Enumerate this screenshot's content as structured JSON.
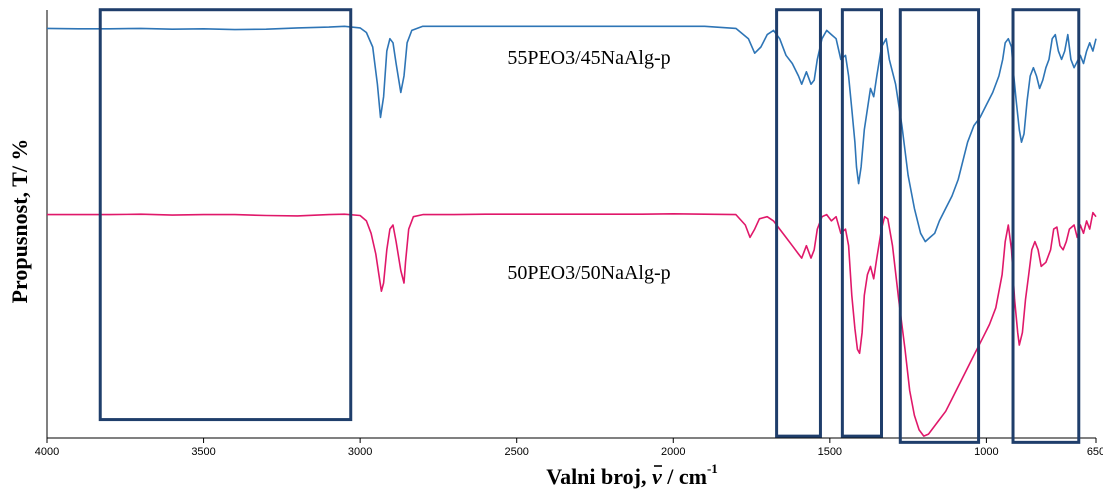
{
  "chart_data": {
    "type": "line",
    "xlabel": "Valni broj, ν̄ / cm-1",
    "xlabel_parts": {
      "text": "Valni broj, ",
      "symbol": "ν",
      "unit": " / cm",
      "sup": "-1"
    },
    "ylabel": "Propusnost, T/ %",
    "xlim": [
      4000,
      650
    ],
    "x_reversed": true,
    "xticks": [
      4000,
      3500,
      3000,
      2500,
      2000,
      1500,
      1000,
      650
    ],
    "y_ticks_shown": false,
    "grid": false,
    "series": [
      {
        "name": "55PEO3/45NaAlg-p",
        "color": "#2e75b6",
        "points": [
          [
            4000,
            97.5
          ],
          [
            3900,
            97.4
          ],
          [
            3800,
            97.4
          ],
          [
            3700,
            97.5
          ],
          [
            3600,
            97.3
          ],
          [
            3500,
            97.4
          ],
          [
            3400,
            97.2
          ],
          [
            3300,
            97.3
          ],
          [
            3200,
            97.6
          ],
          [
            3100,
            97.8
          ],
          [
            3050,
            98.0
          ],
          [
            3000,
            97.6
          ],
          [
            2980,
            96.5
          ],
          [
            2960,
            93
          ],
          [
            2945,
            84
          ],
          [
            2935,
            76
          ],
          [
            2925,
            81
          ],
          [
            2915,
            92
          ],
          [
            2905,
            95
          ],
          [
            2895,
            94
          ],
          [
            2885,
            89
          ],
          [
            2870,
            82
          ],
          [
            2860,
            86
          ],
          [
            2850,
            94
          ],
          [
            2835,
            97
          ],
          [
            2800,
            98
          ],
          [
            2700,
            98
          ],
          [
            2600,
            98
          ],
          [
            2500,
            98
          ],
          [
            2400,
            98
          ],
          [
            2300,
            98
          ],
          [
            2200,
            98
          ],
          [
            2100,
            98
          ],
          [
            2000,
            98
          ],
          [
            1900,
            98
          ],
          [
            1800,
            97.5
          ],
          [
            1760,
            95
          ],
          [
            1740,
            91.5
          ],
          [
            1720,
            93
          ],
          [
            1700,
            96
          ],
          [
            1680,
            97
          ],
          [
            1660,
            95
          ],
          [
            1640,
            91
          ],
          [
            1620,
            89
          ],
          [
            1600,
            86
          ],
          [
            1590,
            84
          ],
          [
            1575,
            87
          ],
          [
            1560,
            84
          ],
          [
            1550,
            85
          ],
          [
            1540,
            90
          ],
          [
            1525,
            95
          ],
          [
            1510,
            97
          ],
          [
            1495,
            96
          ],
          [
            1480,
            95
          ],
          [
            1465,
            90
          ],
          [
            1450,
            91
          ],
          [
            1440,
            86
          ],
          [
            1430,
            78
          ],
          [
            1420,
            70
          ],
          [
            1415,
            64
          ],
          [
            1408,
            60
          ],
          [
            1400,
            64
          ],
          [
            1390,
            73
          ],
          [
            1380,
            78
          ],
          [
            1370,
            83
          ],
          [
            1360,
            81
          ],
          [
            1350,
            86
          ],
          [
            1335,
            93
          ],
          [
            1320,
            95
          ],
          [
            1310,
            90
          ],
          [
            1290,
            84
          ],
          [
            1270,
            74
          ],
          [
            1250,
            62
          ],
          [
            1230,
            54
          ],
          [
            1210,
            48
          ],
          [
            1195,
            46
          ],
          [
            1180,
            47
          ],
          [
            1165,
            48
          ],
          [
            1150,
            51
          ],
          [
            1130,
            54
          ],
          [
            1110,
            57
          ],
          [
            1090,
            61
          ],
          [
            1060,
            70
          ],
          [
            1040,
            74
          ],
          [
            1020,
            76
          ],
          [
            1000,
            79
          ],
          [
            980,
            82
          ],
          [
            960,
            86
          ],
          [
            948,
            90
          ],
          [
            940,
            94
          ],
          [
            930,
            95
          ],
          [
            920,
            93
          ],
          [
            915,
            88
          ],
          [
            905,
            80
          ],
          [
            895,
            73
          ],
          [
            888,
            70
          ],
          [
            880,
            72
          ],
          [
            870,
            80
          ],
          [
            860,
            86
          ],
          [
            850,
            88
          ],
          [
            840,
            86
          ],
          [
            830,
            83
          ],
          [
            820,
            85
          ],
          [
            810,
            88
          ],
          [
            800,
            90
          ],
          [
            790,
            95
          ],
          [
            780,
            96
          ],
          [
            770,
            92
          ],
          [
            760,
            90
          ],
          [
            750,
            92
          ],
          [
            740,
            96
          ],
          [
            730,
            90
          ],
          [
            720,
            88
          ],
          [
            700,
            91
          ],
          [
            690,
            89
          ],
          [
            680,
            92
          ],
          [
            670,
            94
          ],
          [
            660,
            92
          ],
          [
            650,
            95
          ]
        ]
      },
      {
        "name": "50PEO3/50NaAlg-p",
        "color": "#e0186a",
        "points": [
          [
            4000,
            52.5
          ],
          [
            3900,
            52.5
          ],
          [
            3800,
            52.5
          ],
          [
            3700,
            52.6
          ],
          [
            3600,
            52.4
          ],
          [
            3500,
            52.5
          ],
          [
            3400,
            52.5
          ],
          [
            3300,
            52.3
          ],
          [
            3200,
            52.2
          ],
          [
            3100,
            52.5
          ],
          [
            3050,
            52.6
          ],
          [
            3000,
            52.3
          ],
          [
            2980,
            51
          ],
          [
            2965,
            48
          ],
          [
            2950,
            43
          ],
          [
            2940,
            38
          ],
          [
            2932,
            34
          ],
          [
            2925,
            36
          ],
          [
            2915,
            44
          ],
          [
            2905,
            49
          ],
          [
            2895,
            50
          ],
          [
            2885,
            46
          ],
          [
            2870,
            39
          ],
          [
            2860,
            36
          ],
          [
            2855,
            41
          ],
          [
            2845,
            49
          ],
          [
            2830,
            52
          ],
          [
            2800,
            52.5
          ],
          [
            2700,
            52.5
          ],
          [
            2600,
            52.6
          ],
          [
            2500,
            52.6
          ],
          [
            2400,
            52.6
          ],
          [
            2300,
            52.6
          ],
          [
            2200,
            52.6
          ],
          [
            2100,
            52.6
          ],
          [
            2000,
            52.7
          ],
          [
            1900,
            52.6
          ],
          [
            1800,
            52.5
          ],
          [
            1770,
            50
          ],
          [
            1755,
            47
          ],
          [
            1740,
            49
          ],
          [
            1725,
            51.5
          ],
          [
            1700,
            52
          ],
          [
            1680,
            51
          ],
          [
            1660,
            49
          ],
          [
            1640,
            47
          ],
          [
            1620,
            45
          ],
          [
            1600,
            43
          ],
          [
            1590,
            42
          ],
          [
            1575,
            45
          ],
          [
            1560,
            42
          ],
          [
            1550,
            44
          ],
          [
            1540,
            49
          ],
          [
            1525,
            52
          ],
          [
            1510,
            52.5
          ],
          [
            1495,
            51
          ],
          [
            1480,
            52
          ],
          [
            1465,
            48
          ],
          [
            1450,
            49
          ],
          [
            1440,
            45
          ],
          [
            1430,
            33
          ],
          [
            1420,
            25
          ],
          [
            1412,
            20
          ],
          [
            1405,
            19
          ],
          [
            1397,
            24
          ],
          [
            1390,
            33
          ],
          [
            1380,
            38
          ],
          [
            1370,
            40
          ],
          [
            1360,
            37
          ],
          [
            1350,
            42
          ],
          [
            1335,
            49
          ],
          [
            1325,
            52
          ],
          [
            1315,
            51.5
          ],
          [
            1300,
            45
          ],
          [
            1280,
            32
          ],
          [
            1260,
            20
          ],
          [
            1245,
            10
          ],
          [
            1230,
            4
          ],
          [
            1215,
            0.5
          ],
          [
            1200,
            -1
          ],
          [
            1185,
            -0.5
          ],
          [
            1170,
            1
          ],
          [
            1150,
            3
          ],
          [
            1130,
            5
          ],
          [
            1110,
            8
          ],
          [
            1090,
            11
          ],
          [
            1070,
            14
          ],
          [
            1050,
            17
          ],
          [
            1030,
            20
          ],
          [
            1010,
            23
          ],
          [
            990,
            26
          ],
          [
            970,
            30
          ],
          [
            950,
            38
          ],
          [
            940,
            46
          ],
          [
            930,
            50
          ],
          [
            920,
            44
          ],
          [
            910,
            32
          ],
          [
            900,
            24
          ],
          [
            895,
            21
          ],
          [
            885,
            24
          ],
          [
            875,
            32
          ],
          [
            865,
            38
          ],
          [
            855,
            44
          ],
          [
            845,
            46
          ],
          [
            835,
            44
          ],
          [
            825,
            40
          ],
          [
            810,
            41
          ],
          [
            795,
            44
          ],
          [
            785,
            49
          ],
          [
            775,
            49.5
          ],
          [
            765,
            45
          ],
          [
            755,
            44
          ],
          [
            745,
            46
          ],
          [
            735,
            49
          ],
          [
            720,
            50
          ],
          [
            710,
            47
          ],
          [
            700,
            50
          ],
          [
            690,
            48
          ],
          [
            680,
            51
          ],
          [
            670,
            49
          ],
          [
            660,
            53
          ],
          [
            650,
            52
          ]
        ]
      }
    ],
    "annotations": {
      "series_label_1": "55PEO3/45NaAlg-p",
      "series_label_2": "50PEO3/50NaAlg-p"
    },
    "highlight_boxes": [
      {
        "x_from": 3830,
        "x_to": 3030,
        "y_from": 102,
        "y_to": 3
      },
      {
        "x_from": 1670,
        "x_to": 1530,
        "y_from": 102,
        "y_to": -1
      },
      {
        "x_from": 1460,
        "x_to": 1335,
        "y_from": 102,
        "y_to": -1
      },
      {
        "x_from": 1275,
        "x_to": 1025,
        "y_from": 102,
        "y_to": -2.5
      },
      {
        "x_from": 915,
        "x_to": 705,
        "y_from": 102,
        "y_to": -2.5
      }
    ],
    "box_color": "#1f3e6b"
  }
}
